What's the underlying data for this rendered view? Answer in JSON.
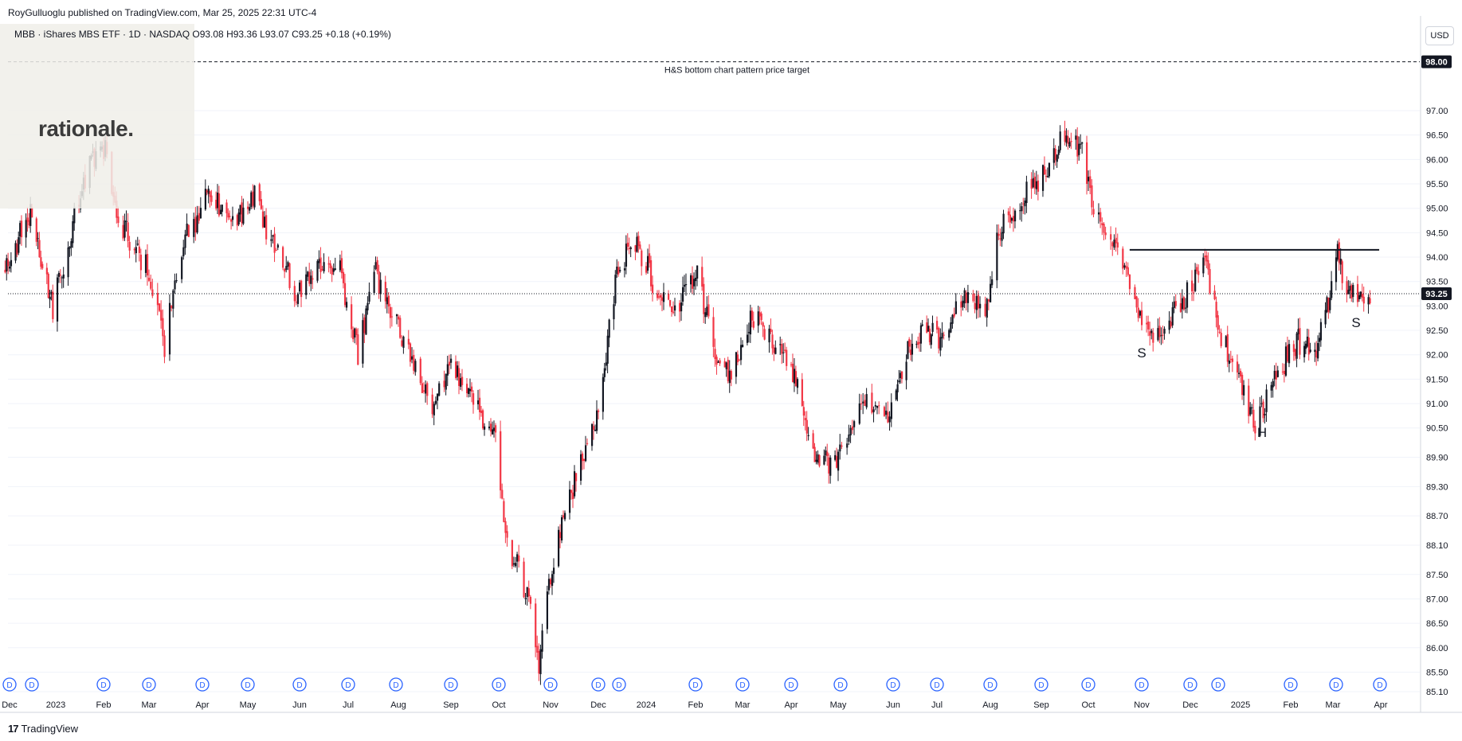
{
  "header": {
    "publisher": "RoyGulluoglu published on TradingView.com, Mar 25, 2025 22:31 UTC-4",
    "symbol_line": "MBB · iShares MBS ETF · 1D · NASDAQ  O93.08 H93.36 L93.07 C93.25 +0.18 (+0.19%)"
  },
  "logo": {
    "text": "rationale."
  },
  "currency": "USD",
  "footer": {
    "icon": "tradingview-logo-icon",
    "brand": "TradingView"
  },
  "colors": {
    "up": "#131722",
    "down": "#f23645",
    "dividend": "#2962ff",
    "grid": "#f0f3fa"
  },
  "chart_data": {
    "type": "candlestick",
    "title": "",
    "y_ticks": [
      "97.00",
      "96.50",
      "96.00",
      "95.50",
      "95.00",
      "94.50",
      "94.00",
      "93.50",
      "93.00",
      "92.50",
      "92.00",
      "91.50",
      "91.00",
      "90.50",
      "89.90",
      "89.30",
      "88.70",
      "88.10",
      "87.50",
      "87.00",
      "86.50",
      "86.00",
      "85.50",
      "85.10"
    ],
    "x_ticks": [
      "Dec",
      "2023",
      "Feb",
      "Mar",
      "Apr",
      "May",
      "Jun",
      "Jul",
      "Aug",
      "Sep",
      "Oct",
      "Nov",
      "Dec",
      "2024",
      "Feb",
      "Mar",
      "Apr",
      "May",
      "Jun",
      "Jul",
      "Aug",
      "Sep",
      "Oct",
      "Nov",
      "Dec",
      "2025",
      "Feb",
      "Mar",
      "Apr"
    ],
    "current_price": "93.25",
    "target_price": "98.00",
    "target_label": "H&S bottom chart pattern price target",
    "neckline": 94.15,
    "pattern_labels": [
      "S",
      "H",
      "S"
    ],
    "dividend_marker": "D",
    "dividend_count": 29,
    "price_path": [
      {
        "date": "2022-11-28",
        "close": 93.8
      },
      {
        "date": "2022-12-15",
        "close": 94.9
      },
      {
        "date": "2022-12-30",
        "close": 93.0
      },
      {
        "date": "2023-01-19",
        "close": 95.6
      },
      {
        "date": "2023-02-02",
        "close": 96.3
      },
      {
        "date": "2023-02-10",
        "close": 94.8
      },
      {
        "date": "2023-03-02",
        "close": 93.6
      },
      {
        "date": "2023-03-10",
        "close": 92.2
      },
      {
        "date": "2023-03-20",
        "close": 94.2
      },
      {
        "date": "2023-04-06",
        "close": 95.4
      },
      {
        "date": "2023-04-20",
        "close": 94.6
      },
      {
        "date": "2023-05-04",
        "close": 95.3
      },
      {
        "date": "2023-05-15",
        "close": 94.3
      },
      {
        "date": "2023-05-30",
        "close": 93.3
      },
      {
        "date": "2023-06-12",
        "close": 93.8
      },
      {
        "date": "2023-06-26",
        "close": 93.7
      },
      {
        "date": "2023-07-07",
        "close": 92.0
      },
      {
        "date": "2023-07-18",
        "close": 93.7
      },
      {
        "date": "2023-08-03",
        "close": 92.3
      },
      {
        "date": "2023-08-21",
        "close": 91.0
      },
      {
        "date": "2023-09-01",
        "close": 91.9
      },
      {
        "date": "2023-09-15",
        "close": 91.0
      },
      {
        "date": "2023-09-29",
        "close": 90.2
      },
      {
        "date": "2023-10-06",
        "close": 88.2
      },
      {
        "date": "2023-10-20",
        "close": 86.9
      },
      {
        "date": "2023-10-25",
        "close": 85.7
      },
      {
        "date": "2023-11-03",
        "close": 87.9
      },
      {
        "date": "2023-11-16",
        "close": 89.4
      },
      {
        "date": "2023-12-01",
        "close": 90.9
      },
      {
        "date": "2023-12-14",
        "close": 93.9
      },
      {
        "date": "2023-12-27",
        "close": 94.2
      },
      {
        "date": "2024-01-08",
        "close": 93.3
      },
      {
        "date": "2024-01-19",
        "close": 92.9
      },
      {
        "date": "2024-02-02",
        "close": 93.6
      },
      {
        "date": "2024-02-13",
        "close": 92.0
      },
      {
        "date": "2024-02-23",
        "close": 91.6
      },
      {
        "date": "2024-03-08",
        "close": 92.8
      },
      {
        "date": "2024-03-22",
        "close": 92.2
      },
      {
        "date": "2024-04-03",
        "close": 91.5
      },
      {
        "date": "2024-04-16",
        "close": 90.0
      },
      {
        "date": "2024-04-25",
        "close": 89.8
      },
      {
        "date": "2024-05-03",
        "close": 89.9
      },
      {
        "date": "2024-05-15",
        "close": 91.0
      },
      {
        "date": "2024-05-29",
        "close": 90.7
      },
      {
        "date": "2024-06-12",
        "close": 92.2
      },
      {
        "date": "2024-06-24",
        "close": 92.5
      },
      {
        "date": "2024-07-03",
        "close": 92.3
      },
      {
        "date": "2024-07-16",
        "close": 93.1
      },
      {
        "date": "2024-07-30",
        "close": 92.9
      },
      {
        "date": "2024-08-05",
        "close": 94.5
      },
      {
        "date": "2024-08-20",
        "close": 95.2
      },
      {
        "date": "2024-09-04",
        "close": 95.8
      },
      {
        "date": "2024-09-16",
        "close": 96.6
      },
      {
        "date": "2024-09-27",
        "close": 96.2
      },
      {
        "date": "2024-10-04",
        "close": 94.9
      },
      {
        "date": "2024-10-16",
        "close": 94.3
      },
      {
        "date": "2024-10-25",
        "close": 93.5
      },
      {
        "date": "2024-11-05",
        "close": 92.3
      },
      {
        "date": "2024-11-14",
        "close": 92.6
      },
      {
        "date": "2024-11-26",
        "close": 93.1
      },
      {
        "date": "2024-12-06",
        "close": 93.6
      },
      {
        "date": "2024-12-11",
        "close": 93.9
      },
      {
        "date": "2024-12-19",
        "close": 92.4
      },
      {
        "date": "2024-12-31",
        "close": 91.6
      },
      {
        "date": "2025-01-10",
        "close": 90.5
      },
      {
        "date": "2025-01-23",
        "close": 91.6
      },
      {
        "date": "2025-02-05",
        "close": 92.3
      },
      {
        "date": "2025-02-18",
        "close": 92.0
      },
      {
        "date": "2025-03-04",
        "close": 94.0
      },
      {
        "date": "2025-03-12",
        "close": 93.2
      },
      {
        "date": "2025-03-25",
        "close": 93.25
      }
    ]
  }
}
